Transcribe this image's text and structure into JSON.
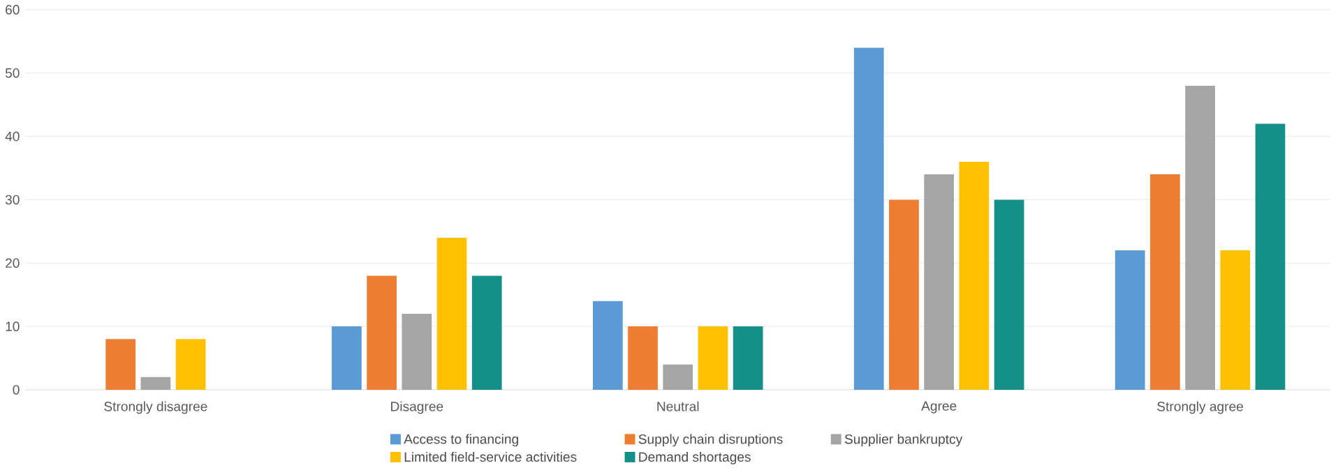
{
  "chart_data": {
    "type": "bar",
    "categories": [
      "Strongly disagree",
      "Disagree",
      "Neutral",
      "Agree",
      "Strongly agree"
    ],
    "series": [
      {
        "name": "Access to financing",
        "color": "#5b9bd5",
        "values": [
          0,
          10,
          14,
          54,
          22
        ]
      },
      {
        "name": "Supply chain disruptions",
        "color": "#ed7d31",
        "values": [
          8,
          18,
          10,
          30,
          34
        ]
      },
      {
        "name": "Supplier bankruptcy",
        "color": "#a5a5a5",
        "values": [
          2,
          12,
          4,
          34,
          48
        ]
      },
      {
        "name": "Limited field-service activities",
        "color": "#ffc000",
        "values": [
          8,
          24,
          10,
          36,
          22
        ]
      },
      {
        "name": "Demand shortages",
        "color": "#148f8a",
        "values": [
          0,
          18,
          10,
          30,
          42
        ]
      }
    ],
    "ylim": [
      0,
      60
    ],
    "yticks": [
      0,
      10,
      20,
      30,
      40,
      50,
      60
    ],
    "grid": "y",
    "legend": "bottom"
  }
}
